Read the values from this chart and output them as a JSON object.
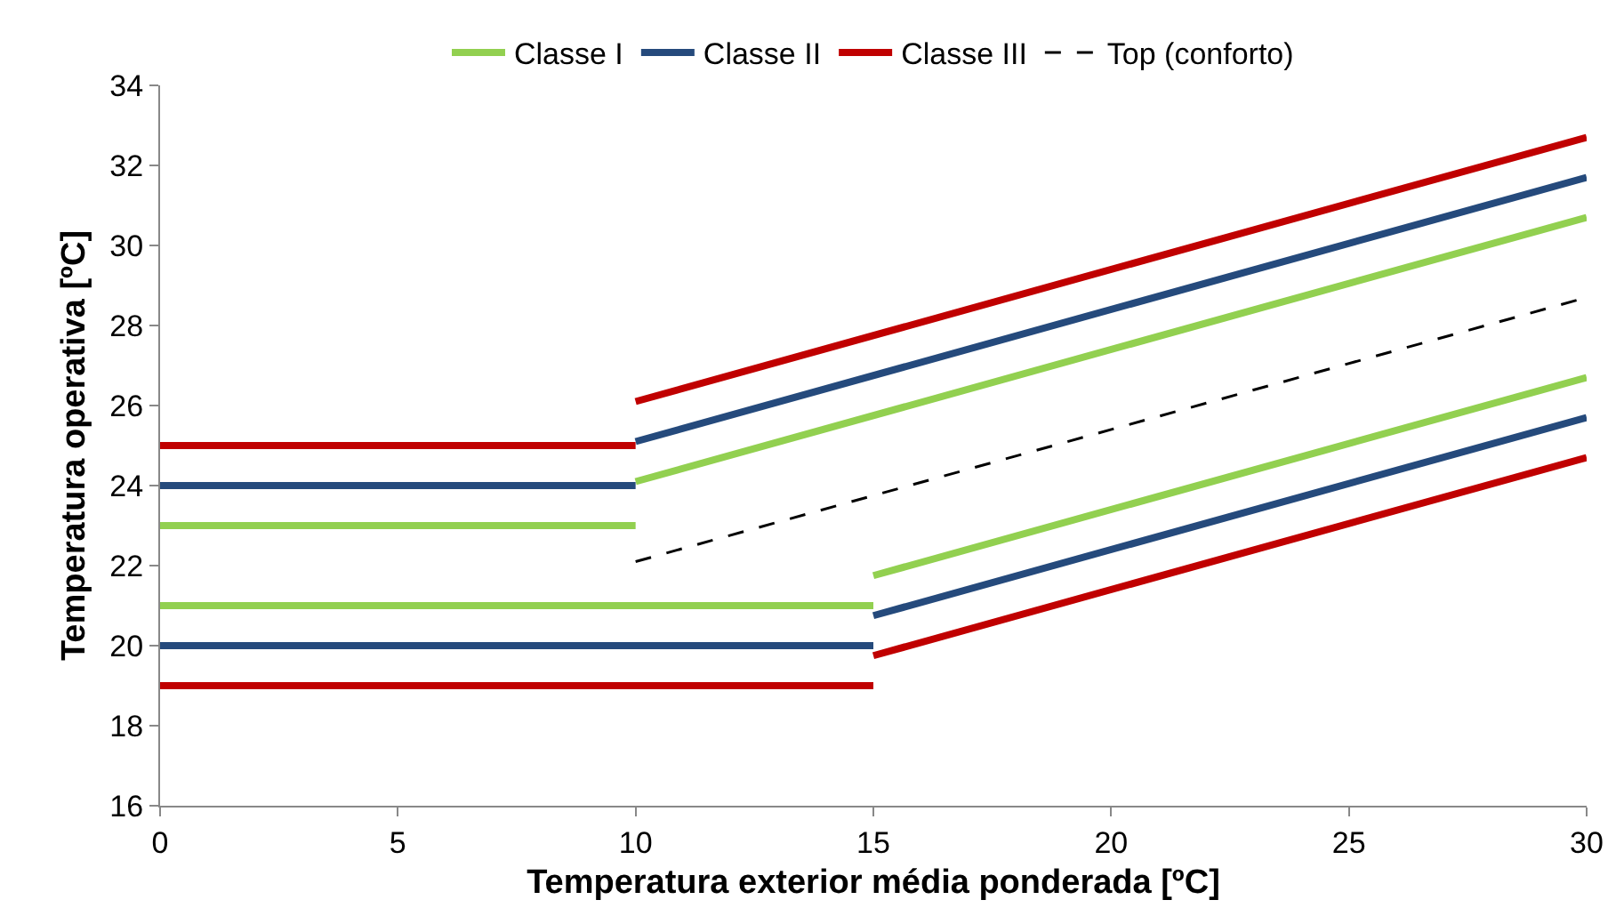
{
  "chart_data": {
    "type": "line",
    "xlabel": "Temperatura exterior média ponderada [ºC]",
    "ylabel": "Temperatura operativa [ºC]",
    "xlim": [
      0,
      30
    ],
    "ylim": [
      16,
      34
    ],
    "xticks": [
      0,
      5,
      10,
      15,
      20,
      25,
      30
    ],
    "yticks": [
      16,
      18,
      20,
      22,
      24,
      26,
      28,
      30,
      32,
      34
    ],
    "grid": false,
    "legend": "top",
    "marker": "none",
    "series": [
      {
        "name": "Classe I",
        "color": "#92d050",
        "line_style": "solid",
        "x": [
          10,
          30
        ],
        "values": [
          24.1,
          30.7
        ]
      },
      {
        "name": "Classe II",
        "color": "#254a7c",
        "line_style": "solid",
        "x": [
          10,
          30
        ],
        "values": [
          25.1,
          31.7
        ]
      },
      {
        "name": "Classe III",
        "color": "#c00000",
        "line_style": "solid",
        "x": [
          10,
          30
        ],
        "values": [
          26.1,
          32.7
        ]
      },
      {
        "name": "Top (conforto)",
        "color": "#000000",
        "line_style": "dashed",
        "x": [
          10,
          30
        ],
        "values": [
          22.1,
          28.7
        ]
      },
      {
        "color": "#92d050",
        "line_style": "solid",
        "x": [
          0,
          10
        ],
        "values": [
          23,
          23
        ]
      },
      {
        "color": "#92d050",
        "line_style": "solid",
        "x": [
          0,
          15
        ],
        "values": [
          21,
          21
        ]
      },
      {
        "color": "#92d050",
        "line_style": "solid",
        "x": [
          15,
          30
        ],
        "values": [
          21.75,
          26.7
        ]
      },
      {
        "color": "#254a7c",
        "line_style": "solid",
        "x": [
          0,
          10
        ],
        "values": [
          24,
          24
        ]
      },
      {
        "color": "#254a7c",
        "line_style": "solid",
        "x": [
          0,
          15
        ],
        "values": [
          20,
          20
        ]
      },
      {
        "color": "#254a7c",
        "line_style": "solid",
        "x": [
          15,
          30
        ],
        "values": [
          20.75,
          25.7
        ]
      },
      {
        "color": "#c00000",
        "line_style": "solid",
        "x": [
          0,
          10
        ],
        "values": [
          25,
          25
        ]
      },
      {
        "color": "#c00000",
        "line_style": "solid",
        "x": [
          0,
          15
        ],
        "values": [
          19,
          19
        ]
      },
      {
        "color": "#c00000",
        "line_style": "solid",
        "x": [
          15,
          30
        ],
        "values": [
          19.75,
          24.7
        ]
      }
    ]
  }
}
